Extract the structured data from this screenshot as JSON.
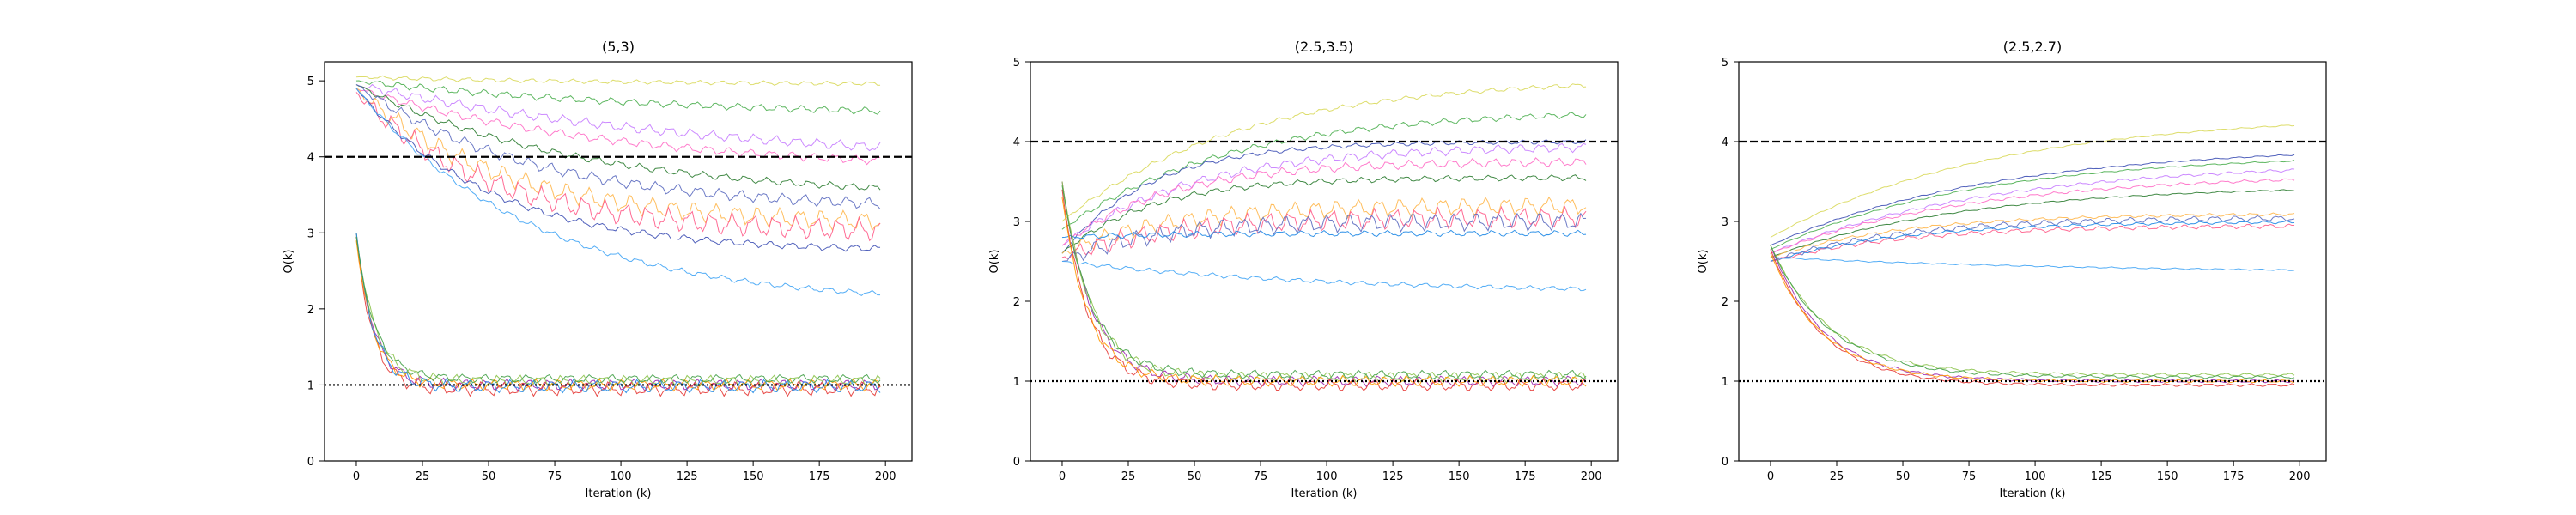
{
  "chart_data": [
    {
      "type": "line",
      "title": "(5,3)",
      "xlabel": "Iteration (k)",
      "ylabel": "O(k)",
      "xlim": [
        -12,
        210
      ],
      "ylim": [
        0,
        5.25
      ],
      "xticks": [
        0,
        25,
        50,
        75,
        100,
        125,
        150,
        175,
        200
      ],
      "yticks": [
        0,
        1,
        2,
        3,
        4,
        5
      ],
      "reference_lines": [
        {
          "y": 4,
          "style": "dashed",
          "color": "#000000"
        },
        {
          "y": 1,
          "style": "dotted",
          "color": "#000000"
        }
      ],
      "series": [
        {
          "color": "#d9d95c",
          "start": 5.05,
          "end": 4.95,
          "rate": 0.01,
          "osc": 0.03
        },
        {
          "color": "#4caf50",
          "start": 5.0,
          "end": 4.5,
          "rate": 0.008,
          "osc": 0.05
        },
        {
          "color": "#c77dff",
          "start": 4.95,
          "end": 3.85,
          "rate": 0.007,
          "osc": 0.07
        },
        {
          "color": "#ff6ec7",
          "start": 4.9,
          "end": 3.8,
          "rate": 0.01,
          "osc": 0.06
        },
        {
          "color": "#2e7d32",
          "start": 4.95,
          "end": 3.45,
          "rate": 0.012,
          "osc": 0.05
        },
        {
          "color": "#5c6bc0",
          "start": 4.95,
          "end": 3.3,
          "rate": 0.015,
          "osc": 0.08
        },
        {
          "color": "#ffb74d",
          "start": 4.9,
          "end": 3.1,
          "rate": 0.018,
          "osc": 0.14
        },
        {
          "color": "#ff5c8a",
          "start": 4.85,
          "end": 3.0,
          "rate": 0.02,
          "osc": 0.16
        },
        {
          "color": "#3f51b5",
          "start": 4.9,
          "end": 2.75,
          "rate": 0.02,
          "osc": 0.05
        },
        {
          "color": "#42a5f5",
          "start": 4.9,
          "end": 2.05,
          "rate": 0.015,
          "osc": 0.04
        },
        {
          "color": "#9c27b0",
          "start": 3.0,
          "end": 1.0,
          "rate": 0.15,
          "osc": 0.08
        },
        {
          "color": "#e53935",
          "start": 2.95,
          "end": 0.95,
          "rate": 0.16,
          "osc": 0.1
        },
        {
          "color": "#8bc34a",
          "start": 3.0,
          "end": 1.05,
          "rate": 0.14,
          "osc": 0.08
        },
        {
          "color": "#ff9800",
          "start": 2.9,
          "end": 1.0,
          "rate": 0.15,
          "osc": 0.08
        },
        {
          "color": "#1e88e5",
          "start": 3.0,
          "end": 0.98,
          "rate": 0.15,
          "osc": 0.09
        },
        {
          "color": "#43a047",
          "start": 2.95,
          "end": 1.08,
          "rate": 0.14,
          "osc": 0.06
        }
      ]
    },
    {
      "type": "line",
      "title": "(2.5,3.5)",
      "xlabel": "Iteration (k)",
      "ylabel": "O(k)",
      "xlim": [
        -12,
        210
      ],
      "ylim": [
        0,
        5.0
      ],
      "xticks": [
        0,
        25,
        50,
        75,
        100,
        125,
        150,
        175,
        200
      ],
      "yticks": [
        0,
        1,
        2,
        3,
        4,
        5
      ],
      "reference_lines": [
        {
          "y": 4,
          "style": "dashed",
          "color": "#000000"
        },
        {
          "y": 1,
          "style": "dotted",
          "color": "#000000"
        }
      ],
      "series": [
        {
          "color": "#d9d95c",
          "start": 3.0,
          "end": 4.8,
          "rate": 0.015,
          "osc": 0.03
        },
        {
          "color": "#4caf50",
          "start": 2.9,
          "end": 4.4,
          "rate": 0.016,
          "osc": 0.04
        },
        {
          "color": "#3f51b5",
          "start": 2.6,
          "end": 4.0,
          "rate": 0.03,
          "osc": 0.03
        },
        {
          "color": "#c77dff",
          "start": 2.7,
          "end": 3.95,
          "rate": 0.02,
          "osc": 0.06
        },
        {
          "color": "#ff6ec7",
          "start": 2.7,
          "end": 3.75,
          "rate": 0.025,
          "osc": 0.06
        },
        {
          "color": "#2e7d32",
          "start": 2.6,
          "end": 3.55,
          "rate": 0.03,
          "osc": 0.04
        },
        {
          "color": "#ffb74d",
          "start": 2.6,
          "end": 3.2,
          "rate": 0.025,
          "osc": 0.12
        },
        {
          "color": "#ff5c8a",
          "start": 2.55,
          "end": 3.05,
          "rate": 0.025,
          "osc": 0.14
        },
        {
          "color": "#5c6bc0",
          "start": 2.5,
          "end": 3.0,
          "rate": 0.03,
          "osc": 0.12
        },
        {
          "color": "#1e88e5",
          "start": 2.8,
          "end": 2.85,
          "rate": 0.03,
          "osc": 0.04
        },
        {
          "color": "#42a5f5",
          "start": 2.5,
          "end": 2.1,
          "rate": 0.01,
          "osc": 0.03
        },
        {
          "color": "#9c27b0",
          "start": 3.5,
          "end": 1.0,
          "rate": 0.09,
          "osc": 0.07
        },
        {
          "color": "#e53935",
          "start": 3.4,
          "end": 0.95,
          "rate": 0.1,
          "osc": 0.08
        },
        {
          "color": "#8bc34a",
          "start": 3.5,
          "end": 1.05,
          "rate": 0.09,
          "osc": 0.07
        },
        {
          "color": "#ff9800",
          "start": 3.3,
          "end": 1.0,
          "rate": 0.1,
          "osc": 0.07
        },
        {
          "color": "#43a047",
          "start": 3.45,
          "end": 1.08,
          "rate": 0.09,
          "osc": 0.06
        }
      ]
    },
    {
      "type": "line",
      "title": "(2.5,2.7)",
      "xlabel": "Iteration (k)",
      "ylabel": "O(k)",
      "xlim": [
        -12,
        210
      ],
      "ylim": [
        0,
        5.0
      ],
      "xticks": [
        0,
        25,
        50,
        75,
        100,
        125,
        150,
        175,
        200
      ],
      "yticks": [
        0,
        1,
        2,
        3,
        4,
        5
      ],
      "reference_lines": [
        {
          "y": 4,
          "style": "dashed",
          "color": "#000000"
        },
        {
          "y": 1,
          "style": "dotted",
          "color": "#000000"
        }
      ],
      "series": [
        {
          "color": "#d9d95c",
          "start": 2.8,
          "end": 4.35,
          "rate": 0.012,
          "osc": 0.01
        },
        {
          "color": "#3f51b5",
          "start": 2.7,
          "end": 3.95,
          "rate": 0.012,
          "osc": 0.01
        },
        {
          "color": "#4caf50",
          "start": 2.65,
          "end": 3.85,
          "rate": 0.013,
          "osc": 0.01
        },
        {
          "color": "#c77dff",
          "start": 2.6,
          "end": 3.75,
          "rate": 0.012,
          "osc": 0.02
        },
        {
          "color": "#ff6ec7",
          "start": 2.6,
          "end": 3.6,
          "rate": 0.013,
          "osc": 0.02
        },
        {
          "color": "#2e7d32",
          "start": 2.55,
          "end": 3.45,
          "rate": 0.014,
          "osc": 0.01
        },
        {
          "color": "#5c6bc0",
          "start": 2.5,
          "end": 3.05,
          "rate": 0.02,
          "osc": 0.04
        },
        {
          "color": "#ffb74d",
          "start": 2.55,
          "end": 3.1,
          "rate": 0.02,
          "osc": 0.02
        },
        {
          "color": "#ff5c8a",
          "start": 2.5,
          "end": 2.95,
          "rate": 0.02,
          "osc": 0.03
        },
        {
          "color": "#1e88e5",
          "start": 2.5,
          "end": 3.0,
          "rate": 0.02,
          "osc": 0.02
        },
        {
          "color": "#42a5f5",
          "start": 2.55,
          "end": 2.35,
          "rate": 0.008,
          "osc": 0.01
        },
        {
          "color": "#9c27b0",
          "start": 2.7,
          "end": 1.0,
          "rate": 0.05,
          "osc": 0.02
        },
        {
          "color": "#e53935",
          "start": 2.65,
          "end": 0.95,
          "rate": 0.05,
          "osc": 0.02
        },
        {
          "color": "#8bc34a",
          "start": 2.7,
          "end": 1.08,
          "rate": 0.045,
          "osc": 0.02
        },
        {
          "color": "#ff9800",
          "start": 2.6,
          "end": 1.0,
          "rate": 0.05,
          "osc": 0.02
        },
        {
          "color": "#43a047",
          "start": 2.7,
          "end": 1.05,
          "rate": 0.045,
          "osc": 0.02
        }
      ]
    }
  ]
}
